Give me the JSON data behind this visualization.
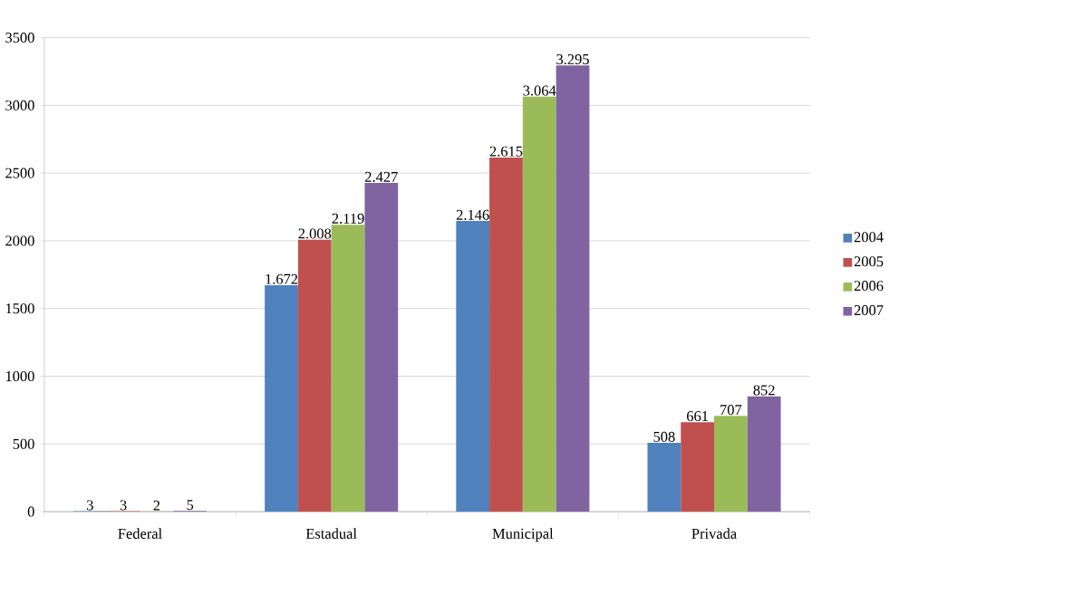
{
  "chart_data": {
    "type": "bar",
    "categories": [
      "Federal",
      "Estadual",
      "Municipal",
      "Privada"
    ],
    "series": [
      {
        "name": "2004",
        "color": "#4f81bd",
        "values": [
          3,
          1672,
          2146,
          508
        ],
        "value_labels": [
          "3",
          "1.672",
          "2.146",
          "508"
        ]
      },
      {
        "name": "2005",
        "color": "#c0504d",
        "values": [
          3,
          2008,
          2615,
          661
        ],
        "value_labels": [
          "3",
          "2.008",
          "2.615",
          "661"
        ]
      },
      {
        "name": "2006",
        "color": "#9bbb59",
        "values": [
          2,
          2119,
          3064,
          707
        ],
        "value_labels": [
          "2",
          "2.119",
          "3.064",
          "707"
        ]
      },
      {
        "name": "2007",
        "color": "#8064a2",
        "values": [
          5,
          2427,
          3295,
          852
        ],
        "value_labels": [
          "5",
          "2.427",
          "3.295",
          "852"
        ]
      }
    ],
    "ylim": [
      0,
      3500
    ],
    "yticks": [
      0,
      500,
      1000,
      1500,
      2000,
      2500,
      3000,
      3500
    ],
    "grid": "y",
    "legend": "right"
  }
}
